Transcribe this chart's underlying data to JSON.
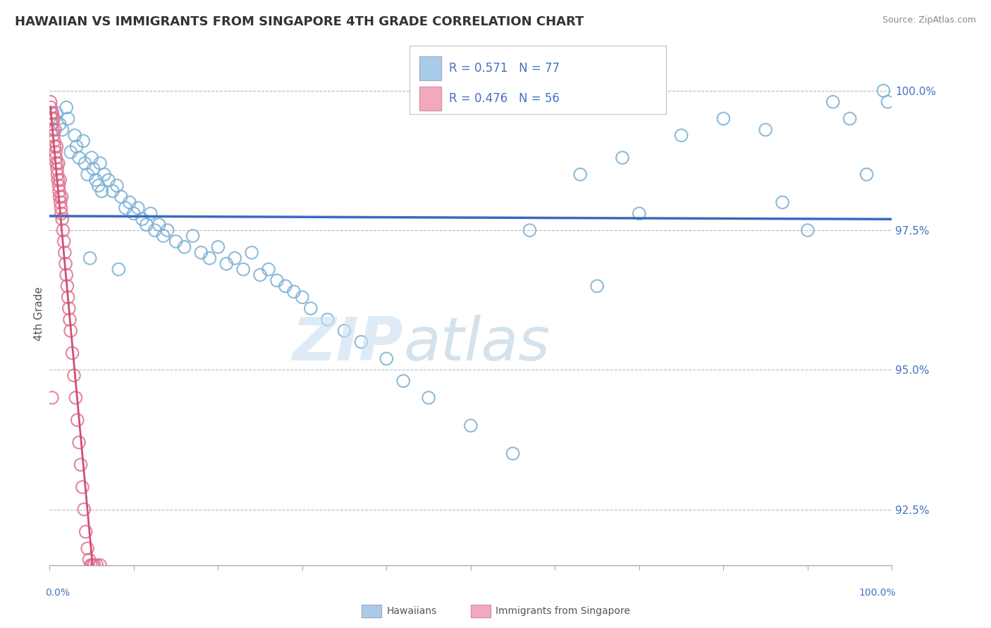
{
  "title": "HAWAIIAN VS IMMIGRANTS FROM SINGAPORE 4TH GRADE CORRELATION CHART",
  "source": "Source: ZipAtlas.com",
  "ylabel": "4th Grade",
  "legend_r1": "0.571",
  "legend_n1": "77",
  "legend_r2": "0.476",
  "legend_n2": "56",
  "blue_color": "#a8cce8",
  "blue_edge_color": "#7aafd4",
  "pink_color": "#f4a8be",
  "pink_edge_color": "#e07090",
  "trendline_color": "#3a6abf",
  "pink_trendline_color": "#d05070",
  "watermark_zip_color": "#c8dff0",
  "watermark_atlas_color": "#b8cfe0",
  "xlim": [
    0.0,
    100.0
  ],
  "ylim": [
    91.5,
    100.5
  ],
  "right_yticks": [
    92.5,
    95.0,
    97.5,
    100.0
  ],
  "right_yticklabels": [
    "92.5%",
    "95.0%",
    "97.5%",
    "100.0%"
  ],
  "blue_x": [
    0.5,
    0.8,
    1.2,
    1.5,
    2.0,
    2.2,
    2.5,
    3.0,
    3.2,
    3.5,
    4.0,
    4.2,
    4.5,
    5.0,
    5.2,
    5.5,
    5.8,
    6.0,
    6.5,
    7.0,
    7.5,
    8.0,
    8.5,
    9.0,
    9.5,
    10.0,
    10.5,
    11.0,
    11.5,
    12.0,
    12.5,
    13.0,
    13.5,
    14.0,
    15.0,
    16.0,
    17.0,
    18.0,
    19.0,
    20.0,
    21.0,
    22.0,
    23.0,
    24.0,
    25.0,
    26.0,
    27.0,
    28.0,
    29.0,
    30.0,
    31.0,
    33.0,
    35.0,
    37.0,
    40.0,
    42.0,
    45.0,
    50.0,
    55.0,
    57.0,
    63.0,
    65.0,
    68.0,
    70.0,
    75.0,
    80.0,
    85.0,
    87.0,
    90.0,
    93.0,
    95.0,
    97.0,
    99.0,
    99.5,
    4.8,
    6.2,
    8.2
  ],
  "blue_y": [
    99.5,
    99.6,
    99.4,
    99.3,
    99.7,
    99.5,
    98.9,
    99.2,
    99.0,
    98.8,
    99.1,
    98.7,
    98.5,
    98.8,
    98.6,
    98.4,
    98.3,
    98.7,
    98.5,
    98.4,
    98.2,
    98.3,
    98.1,
    97.9,
    98.0,
    97.8,
    97.9,
    97.7,
    97.6,
    97.8,
    97.5,
    97.6,
    97.4,
    97.5,
    97.3,
    97.2,
    97.4,
    97.1,
    97.0,
    97.2,
    96.9,
    97.0,
    96.8,
    97.1,
    96.7,
    96.8,
    96.6,
    96.5,
    96.4,
    96.3,
    96.1,
    95.9,
    95.7,
    95.5,
    95.2,
    94.8,
    94.5,
    94.0,
    93.5,
    97.5,
    98.5,
    96.5,
    98.8,
    97.8,
    99.2,
    99.5,
    99.3,
    98.0,
    97.5,
    99.8,
    99.5,
    98.5,
    100.0,
    99.8,
    97.0,
    98.2,
    96.8
  ],
  "pink_x": [
    0.1,
    0.15,
    0.2,
    0.25,
    0.3,
    0.35,
    0.4,
    0.45,
    0.5,
    0.55,
    0.6,
    0.65,
    0.7,
    0.75,
    0.8,
    0.85,
    0.9,
    0.95,
    1.0,
    1.05,
    1.1,
    1.15,
    1.2,
    1.25,
    1.3,
    1.35,
    1.4,
    1.45,
    1.5,
    1.6,
    1.7,
    1.8,
    1.9,
    2.0,
    2.1,
    2.2,
    2.3,
    2.4,
    2.5,
    2.7,
    2.9,
    3.1,
    3.3,
    3.5,
    3.7,
    3.9,
    4.1,
    4.3,
    4.5,
    4.7,
    4.9,
    5.1,
    5.3,
    5.6,
    6.0,
    0.3
  ],
  "pink_y": [
    99.8,
    99.7,
    99.6,
    99.5,
    99.4,
    99.6,
    99.3,
    99.2,
    99.5,
    99.1,
    99.0,
    99.3,
    98.9,
    98.8,
    98.7,
    99.0,
    98.6,
    98.5,
    98.4,
    98.7,
    98.3,
    98.2,
    98.1,
    98.4,
    98.0,
    97.9,
    97.8,
    98.1,
    97.7,
    97.5,
    97.3,
    97.1,
    96.9,
    96.7,
    96.5,
    96.3,
    96.1,
    95.9,
    95.7,
    95.3,
    94.9,
    94.5,
    94.1,
    93.7,
    93.3,
    92.9,
    92.5,
    92.1,
    91.8,
    91.6,
    91.5,
    91.5,
    91.5,
    91.5,
    91.5,
    94.5
  ]
}
